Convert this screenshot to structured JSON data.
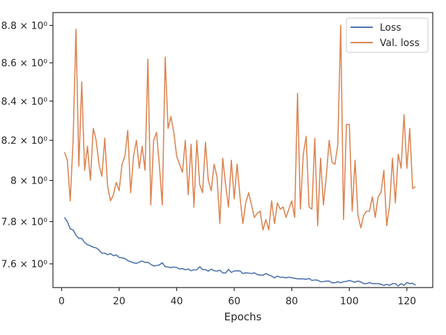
{
  "chart_data": {
    "type": "line",
    "xlabel": "Epochs",
    "ylabel": "",
    "title": "",
    "xlim": [
      -3,
      129
    ],
    "ylim": [
      7.49,
      8.87
    ],
    "y_scale": "log",
    "grid": false,
    "legend_position": "top-right",
    "x_ticks": [
      0,
      20,
      40,
      60,
      80,
      100,
      120
    ],
    "x_tick_labels": [
      "0",
      "20",
      "40",
      "60",
      "80",
      "100",
      "120"
    ],
    "y_ticks": [
      7.6,
      7.8,
      8.0,
      8.2,
      8.4,
      8.6,
      8.8
    ],
    "y_tick_labels": [
      "7.6 × 10⁰",
      "7.8 × 10⁰",
      "8 × 10⁰",
      "8.2 × 10⁰",
      "8.4 × 10⁰",
      "8.6 × 10⁰",
      "8.8 × 10⁰"
    ],
    "series": [
      {
        "name": "Loss",
        "color": "#4c72b0",
        "x": [
          1,
          2,
          3,
          4,
          5,
          6,
          7,
          8,
          9,
          10,
          11,
          12,
          13,
          14,
          15,
          16,
          17,
          18,
          19,
          20,
          21,
          22,
          23,
          24,
          25,
          26,
          27,
          28,
          29,
          30,
          31,
          32,
          33,
          34,
          35,
          36,
          37,
          38,
          39,
          40,
          41,
          42,
          43,
          44,
          45,
          46,
          47,
          48,
          49,
          50,
          51,
          52,
          53,
          54,
          55,
          56,
          57,
          58,
          59,
          60,
          61,
          62,
          63,
          64,
          65,
          66,
          67,
          68,
          69,
          70,
          71,
          72,
          73,
          74,
          75,
          76,
          77,
          78,
          79,
          80,
          81,
          82,
          83,
          84,
          85,
          86,
          87,
          88,
          89,
          90,
          91,
          92,
          93,
          94,
          95,
          96,
          97,
          98,
          99,
          100,
          101,
          102,
          103,
          104,
          105,
          106,
          107,
          108,
          109,
          110,
          111,
          112,
          113,
          114,
          115,
          116,
          117,
          118,
          119,
          120,
          121,
          122,
          123
        ],
        "values": [
          7.82,
          7.8,
          7.765,
          7.76,
          7.735,
          7.72,
          7.72,
          7.7,
          7.69,
          7.685,
          7.678,
          7.675,
          7.665,
          7.65,
          7.65,
          7.643,
          7.648,
          7.638,
          7.642,
          7.63,
          7.628,
          7.625,
          7.615,
          7.61,
          7.605,
          7.602,
          7.608,
          7.613,
          7.607,
          7.607,
          7.598,
          7.59,
          7.592,
          7.595,
          7.605,
          7.587,
          7.585,
          7.582,
          7.585,
          7.583,
          7.576,
          7.578,
          7.572,
          7.576,
          7.568,
          7.572,
          7.572,
          7.587,
          7.573,
          7.573,
          7.566,
          7.575,
          7.568,
          7.566,
          7.57,
          7.558,
          7.557,
          7.574,
          7.56,
          7.567,
          7.567,
          7.567,
          7.555,
          7.558,
          7.557,
          7.555,
          7.558,
          7.55,
          7.548,
          7.547,
          7.555,
          7.548,
          7.543,
          7.535,
          7.543,
          7.537,
          7.538,
          7.535,
          7.538,
          7.535,
          7.533,
          7.53,
          7.53,
          7.53,
          7.528,
          7.532,
          7.523,
          7.525,
          7.524,
          7.517,
          7.517,
          7.52,
          7.52,
          7.512,
          7.512,
          7.517,
          7.512,
          7.517,
          7.518,
          7.523,
          7.518,
          7.515,
          7.52,
          7.516,
          7.508,
          7.508,
          7.513,
          7.508,
          7.508,
          7.508,
          7.505,
          7.5,
          7.505,
          7.5,
          7.508,
          7.508,
          7.497,
          7.508,
          7.5,
          7.513,
          7.508,
          7.51,
          7.5
        ]
      },
      {
        "name": "Val. loss",
        "color": "#dd8452",
        "x": [
          1,
          2,
          3,
          4,
          5,
          6,
          7,
          8,
          9,
          10,
          11,
          12,
          13,
          14,
          15,
          16,
          17,
          18,
          19,
          20,
          21,
          22,
          23,
          24,
          25,
          26,
          27,
          28,
          29,
          30,
          31,
          32,
          33,
          34,
          35,
          36,
          37,
          38,
          39,
          40,
          41,
          42,
          43,
          44,
          45,
          46,
          47,
          48,
          49,
          50,
          51,
          52,
          53,
          54,
          55,
          56,
          57,
          58,
          59,
          60,
          61,
          62,
          63,
          64,
          65,
          66,
          67,
          68,
          69,
          70,
          71,
          72,
          73,
          74,
          75,
          76,
          77,
          78,
          79,
          80,
          81,
          82,
          83,
          84,
          85,
          86,
          87,
          88,
          89,
          90,
          91,
          92,
          93,
          94,
          95,
          96,
          97,
          98,
          99,
          100,
          101,
          102,
          103,
          104,
          105,
          106,
          107,
          108,
          109,
          110,
          111,
          112,
          113,
          114,
          115,
          116,
          117,
          118,
          119,
          120,
          121,
          122,
          123
        ],
        "values": [
          8.14,
          8.1,
          7.9,
          8.2,
          8.78,
          8.07,
          8.5,
          8.05,
          8.17,
          8.0,
          8.26,
          8.2,
          8.08,
          8.02,
          8.21,
          7.97,
          7.9,
          7.93,
          7.99,
          7.95,
          8.08,
          8.12,
          8.25,
          7.94,
          8.12,
          8.2,
          8.06,
          8.17,
          8.05,
          8.62,
          7.88,
          8.2,
          8.24,
          8.07,
          7.88,
          8.63,
          8.26,
          8.32,
          8.24,
          8.12,
          8.08,
          8.04,
          8.2,
          7.93,
          8.18,
          7.87,
          8.2,
          7.98,
          7.94,
          8.19,
          8.0,
          7.95,
          8.08,
          8.02,
          7.79,
          8.11,
          7.98,
          7.87,
          8.1,
          7.91,
          8.08,
          7.92,
          7.79,
          7.89,
          7.94,
          7.88,
          7.82,
          7.84,
          7.85,
          7.76,
          7.81,
          7.76,
          7.9,
          7.79,
          7.89,
          7.86,
          7.87,
          7.82,
          7.86,
          7.9,
          7.82,
          8.44,
          7.86,
          8.13,
          8.22,
          7.87,
          7.86,
          8.21,
          7.78,
          8.11,
          7.88,
          8.02,
          8.2,
          8.09,
          8.08,
          8.18,
          8.8,
          7.81,
          8.28,
          8.28,
          7.85,
          8.1,
          7.83,
          7.77,
          7.83,
          7.85,
          7.85,
          7.92,
          7.82,
          7.92,
          7.94,
          8.05,
          7.78,
          7.88,
          8.11,
          7.89,
          8.13,
          8.06,
          8.33,
          8.06,
          8.26,
          7.96,
          7.97
        ]
      }
    ]
  }
}
